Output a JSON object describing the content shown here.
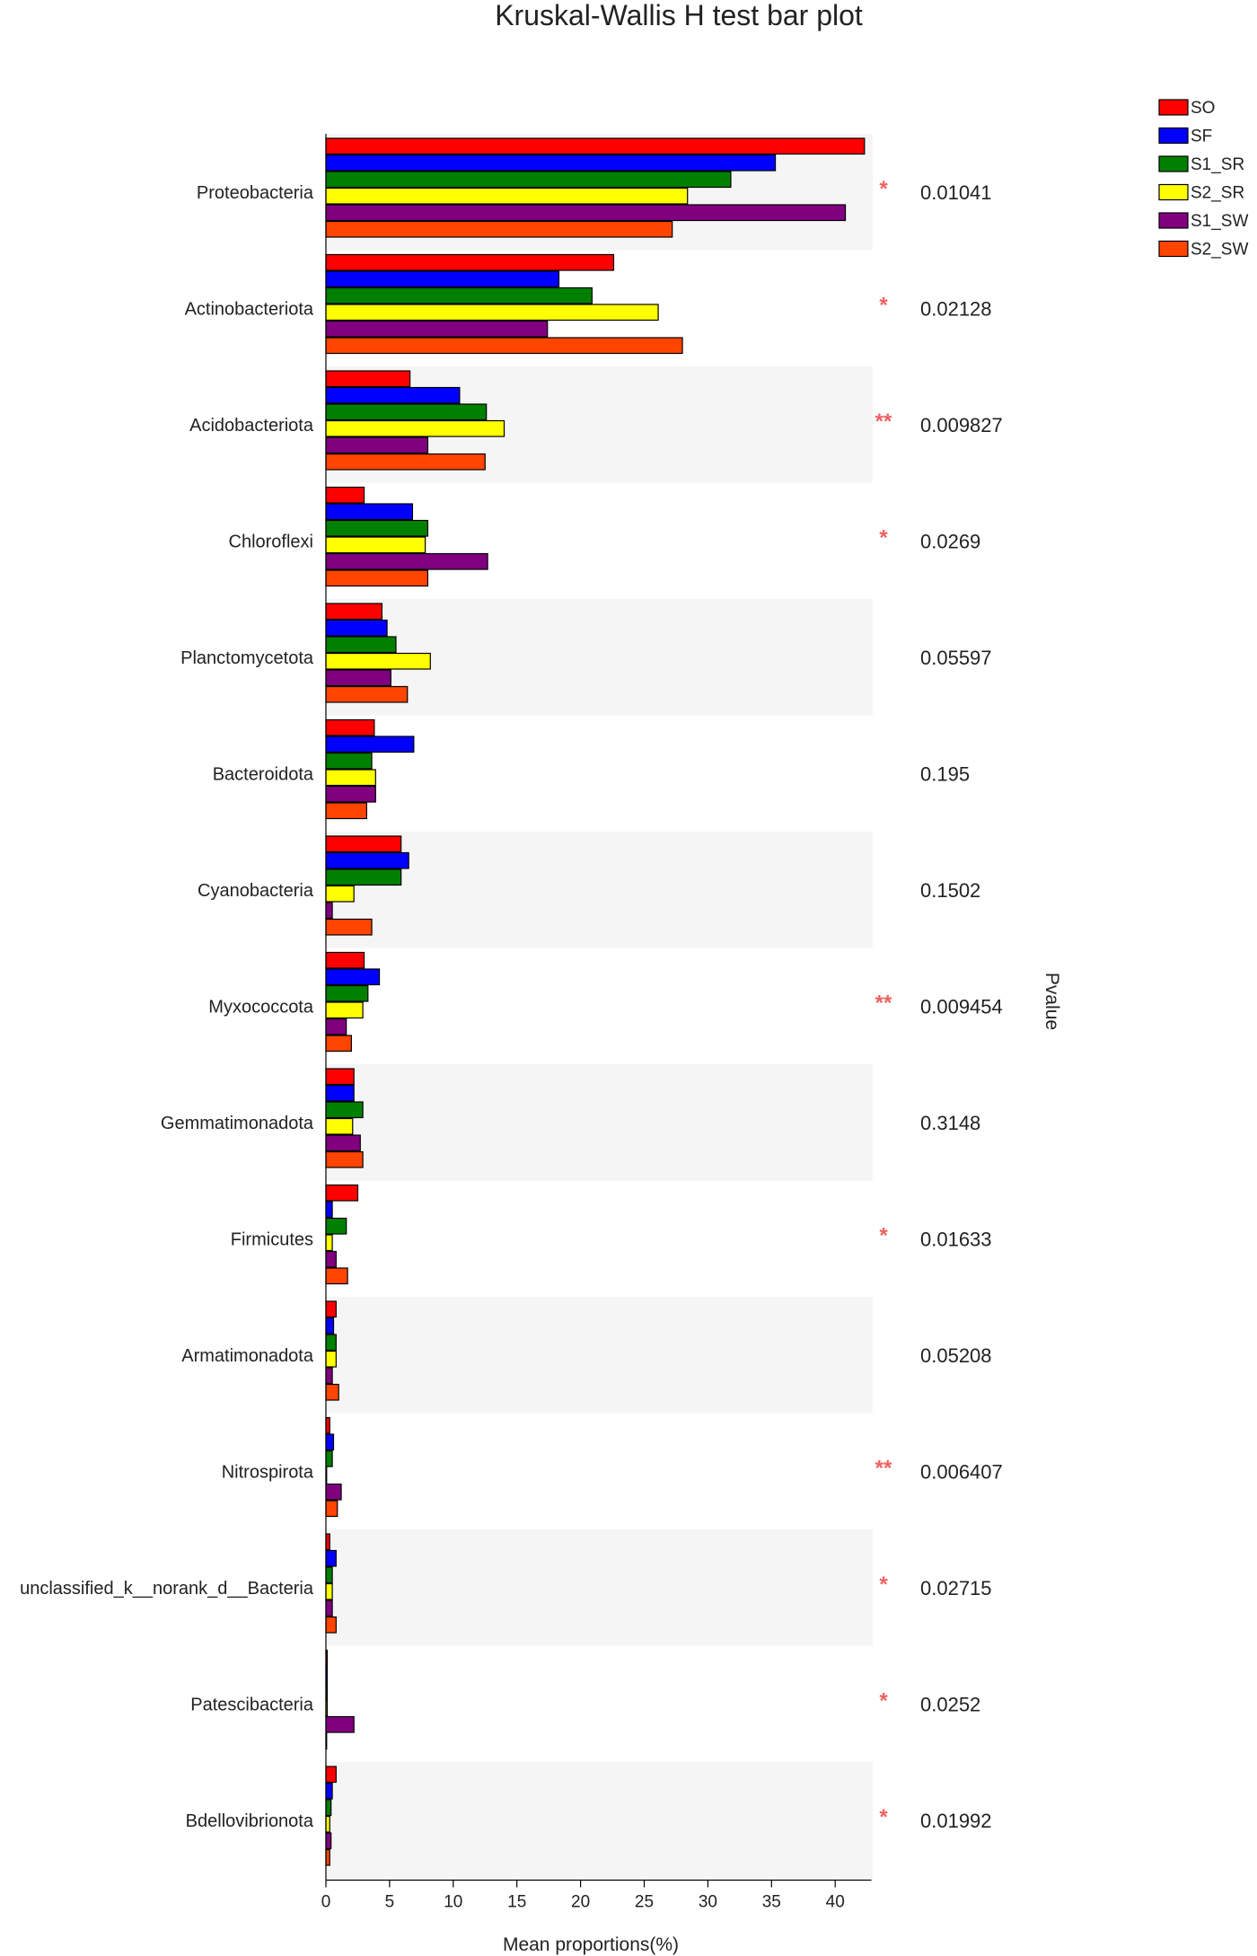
{
  "chart_data": {
    "type": "bar",
    "orientation": "horizontal",
    "title": "Kruskal-Wallis H test bar plot",
    "xlabel": "Mean proportions(%)",
    "pvalue_label": "Pvalue",
    "xlim": [
      0,
      42
    ],
    "xticks": [
      0,
      5,
      10,
      15,
      20,
      25,
      30,
      35,
      40
    ],
    "legend_position": "top-right",
    "categories": [
      "Proteobacteria",
      "Actinobacteriota",
      "Acidobacteriota",
      "Chloroflexi",
      "Planctomycetota",
      "Bacteroidota",
      "Cyanobacteria",
      "Myxococcota",
      "Gemmatimonadota",
      "Firmicutes",
      "Armatimonadota",
      "Nitrospirota",
      "unclassified_k__norank_d__Bacteria",
      "Patescibacteria",
      "Bdellovibrionota"
    ],
    "series": [
      {
        "name": "SO",
        "color": "#ff0000",
        "values": [
          42.3,
          22.6,
          6.6,
          3.0,
          4.4,
          3.8,
          5.9,
          3.0,
          2.2,
          2.5,
          0.8,
          0.3,
          0.3,
          0.1,
          0.8
        ]
      },
      {
        "name": "SF",
        "color": "#0000ff",
        "values": [
          35.3,
          18.3,
          10.5,
          6.8,
          4.8,
          6.9,
          6.5,
          4.2,
          2.2,
          0.5,
          0.6,
          0.6,
          0.8,
          0.1,
          0.5
        ]
      },
      {
        "name": "S1_SR",
        "color": "#008000",
        "values": [
          31.8,
          20.9,
          12.6,
          8.0,
          5.5,
          3.6,
          5.9,
          3.3,
          2.9,
          1.6,
          0.8,
          0.5,
          0.5,
          0.1,
          0.4
        ]
      },
      {
        "name": "S2_SR",
        "color": "#ffff00",
        "values": [
          28.4,
          26.1,
          14.0,
          7.8,
          8.2,
          3.9,
          2.2,
          2.9,
          2.1,
          0.5,
          0.8,
          0.0,
          0.5,
          0.1,
          0.3
        ]
      },
      {
        "name": "S1_SW",
        "color": "#800080",
        "values": [
          40.8,
          17.4,
          8.0,
          12.7,
          5.1,
          3.9,
          0.5,
          1.6,
          2.7,
          0.8,
          0.5,
          1.2,
          0.5,
          2.2,
          0.4
        ]
      },
      {
        "name": "S2_SW",
        "color": "#ff4500",
        "values": [
          27.2,
          28.0,
          12.5,
          8.0,
          6.4,
          3.2,
          3.6,
          2.0,
          2.9,
          1.7,
          1.0,
          0.9,
          0.8,
          0.0,
          0.3
        ]
      }
    ],
    "pvalues": [
      "0.01041",
      "0.02128",
      "0.009827",
      "0.0269",
      "0.05597",
      "0.195",
      "0.1502",
      "0.009454",
      "0.3148",
      "0.01633",
      "0.05208",
      "0.006407",
      "0.02715",
      "0.0252",
      "0.01992"
    ],
    "significance": [
      "*",
      "*",
      "**",
      "*",
      "",
      "",
      "",
      "**",
      "",
      "*",
      "",
      "**",
      "*",
      "*",
      "*"
    ]
  }
}
